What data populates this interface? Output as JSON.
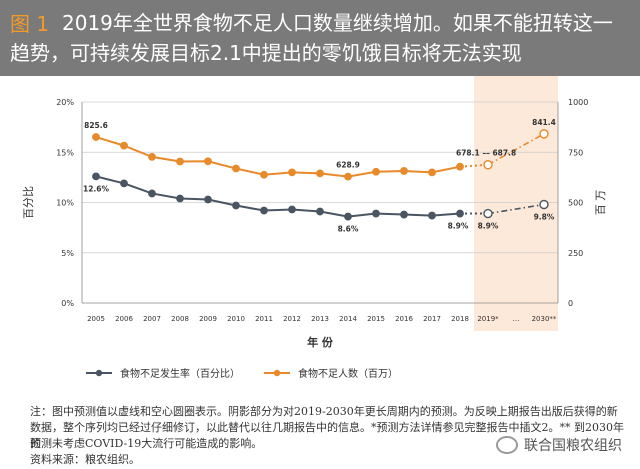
{
  "title": {
    "label": "图 1",
    "text": "2019年全世界食物不足人口数量继续增加。如果不能扭转这一趋势，可持续发展目标2.1中提出的零饥饿目标将无法实现"
  },
  "chart_data": {
    "type": "line",
    "categories": [
      "2005",
      "2006",
      "2007",
      "2008",
      "2009",
      "2010",
      "2011",
      "2012",
      "2013",
      "2014",
      "2015",
      "2016",
      "2017",
      "2018",
      "2019*",
      "…",
      "2030**"
    ],
    "xlabel": "年 份",
    "ylabel_left": "百分比",
    "ylabel_right": "百 万",
    "ylim_left": [
      0,
      20
    ],
    "ylim_right": [
      0,
      1000
    ],
    "left_ticks": [
      "0%",
      "5%",
      "10%",
      "15%",
      "20%"
    ],
    "right_ticks": [
      "0",
      "250",
      "500",
      "750",
      "1000"
    ],
    "shaded_region": "2019*-2030**",
    "series": [
      {
        "name": "食物不足发生率（百分比）",
        "axis": "left",
        "color": "#4a5563",
        "values": [
          12.6,
          11.9,
          10.9,
          10.4,
          10.3,
          9.7,
          9.2,
          9.3,
          9.1,
          8.6,
          8.9,
          8.8,
          8.7,
          8.9,
          8.9,
          null,
          9.8
        ],
        "projected_from": "2018"
      },
      {
        "name": "食物不足人数（百万）",
        "axis": "right",
        "color": "#e8892a",
        "values": [
          825.6,
          783,
          727,
          704,
          705,
          669,
          638,
          650,
          645,
          628.9,
          653,
          657,
          650,
          678.1,
          687.8,
          null,
          841.4
        ],
        "projected_from": "2018"
      }
    ],
    "data_labels": [
      {
        "series": 0,
        "index": 0,
        "text": "12.6%"
      },
      {
        "series": 0,
        "index": 9,
        "text": "8.6%"
      },
      {
        "series": 0,
        "index": 13,
        "text": "8.9%"
      },
      {
        "series": 0,
        "index": 14,
        "text": "8.9%"
      },
      {
        "series": 0,
        "index": 16,
        "text": "9.8%"
      },
      {
        "series": 1,
        "index": 0,
        "text": "825.6"
      },
      {
        "series": 1,
        "index": 9,
        "text": "628.9"
      },
      {
        "series": 1,
        "index": 13,
        "text": "678.1 –– 687.8"
      },
      {
        "series": 1,
        "index": 16,
        "text": "841.4"
      }
    ],
    "legend": [
      "食物不足发生率（百分比）",
      "食物不足人数（百万）"
    ]
  },
  "notes": {
    "line1": "注：图中预测值以虚线和空心圆圈表示。阴影部分为对2019-2030年更长周期内的预测。为反映上期报告出版后获得的新",
    "line2": "数据，整个序列均已经过仔细修订，以此替代以往几期报告中的信息。*预测方法详情参见完整报告中插文2。** 到2030年的",
    "line3": "预测未考虑COVID-19大流行可能造成的影响。",
    "source": "资料来源：粮农组织。"
  },
  "watermark": "联合国粮农组织",
  "colors": {
    "banner": "#7a7a7a",
    "accent_orange": "#e8892a",
    "series_dark": "#4a5563",
    "shade": "#fde9d9"
  }
}
